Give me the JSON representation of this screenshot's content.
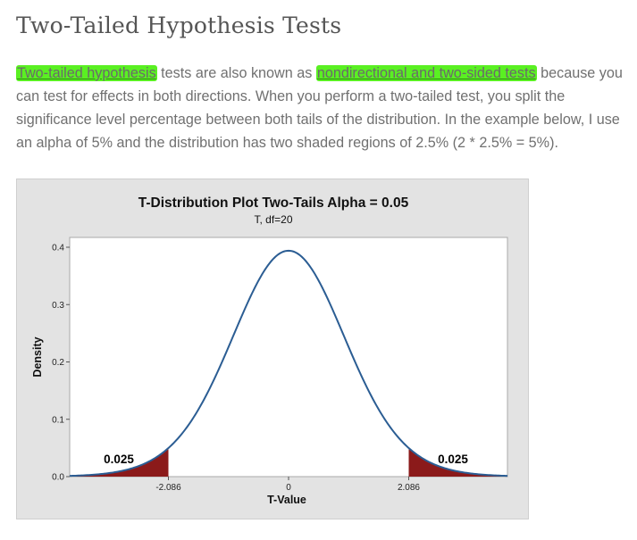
{
  "article": {
    "title": "Two-Tailed Hypothesis Tests",
    "para_hl1": "Two-tailed hypothesis",
    "para_t1": " tests are also known as ",
    "para_hl2": "nondirectional and two-sided tests",
    "para_t2": " because you can test for effects in both directions. When you perform a two-tailed test, you split the significance level percentage between both tails of the distribution. In the example below, I use an alpha of 5% and the distribution has two shaded regions of 2.5% (2 * 2.5% = 5%).",
    "highlight_color": "#5af022"
  },
  "chart_data": {
    "type": "area",
    "title": "T-Distribution Plot Two-Tails Alpha = 0.05",
    "subtitle": "T, df=20",
    "xlabel": "T-Value",
    "ylabel": "Density",
    "distribution": {
      "name": "t",
      "df": 20
    },
    "xlim": [
      -3.8,
      3.8
    ],
    "ylim": [
      0,
      0.4
    ],
    "yticks": [
      0.0,
      0.1,
      0.2,
      0.3,
      0.4
    ],
    "ytick_labels": [
      "0.0",
      "0.1",
      "0.2",
      "0.3",
      "0.4"
    ],
    "xticks": [
      -2.086,
      0,
      2.086
    ],
    "xtick_labels": [
      "-2.086",
      "0",
      "2.086"
    ],
    "critical_values": [
      -2.086,
      2.086
    ],
    "tail_probabilities": [
      0.025,
      0.025
    ],
    "tail_labels": [
      "0.025",
      "0.025"
    ],
    "peak_density": 0.394,
    "colors": {
      "curve": "#2b5d93",
      "tail_fill": "#8b1a1a",
      "background": "#e3e3e3",
      "plot_area": "#ffffff"
    }
  }
}
